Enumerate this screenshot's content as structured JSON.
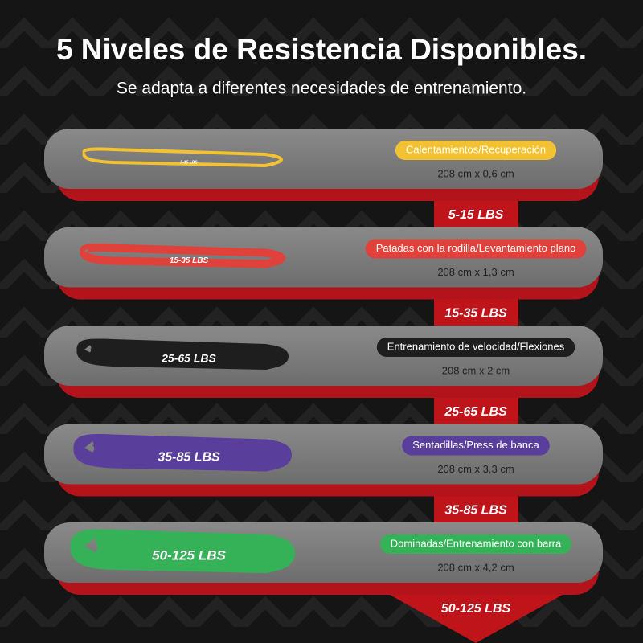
{
  "header": {
    "title": "5 Niveles de Resistencia Disponibles.",
    "subtitle": "Se adapta a diferentes necesidades de entrenamiento."
  },
  "levels": [
    {
      "band_label": "5-15 LBS",
      "use": "Calentamientos/Recuperación",
      "dimensions": "208 cm x 0,6 cm",
      "level": "5-15 LBS",
      "color": "#f2c232"
    },
    {
      "band_label": "15-35 LBS",
      "use": "Patadas con la rodilla/Levantamiento plano",
      "dimensions": "208 cm x 1,3 cm",
      "level": "15-35 LBS",
      "color": "#e0413a"
    },
    {
      "band_label": "25-65 LBS",
      "use": "Entrenamiento de velocidad/Flexiones",
      "dimensions": "208 cm x 2 cm",
      "level": "25-65 LBS",
      "color": "#1e1e1e"
    },
    {
      "band_label": "35-85 LBS",
      "use": "Sentadillas/Press de banca",
      "dimensions": "208 cm x 3,3 cm",
      "level": "35-85 LBS",
      "color": "#5a3e9c"
    },
    {
      "band_label": "50-125 LBS",
      "use": "Dominadas/Entrenamiento con barra",
      "dimensions": "208 cm x 4,2 cm",
      "level": "50-125 LBS",
      "color": "#35b257"
    }
  ]
}
